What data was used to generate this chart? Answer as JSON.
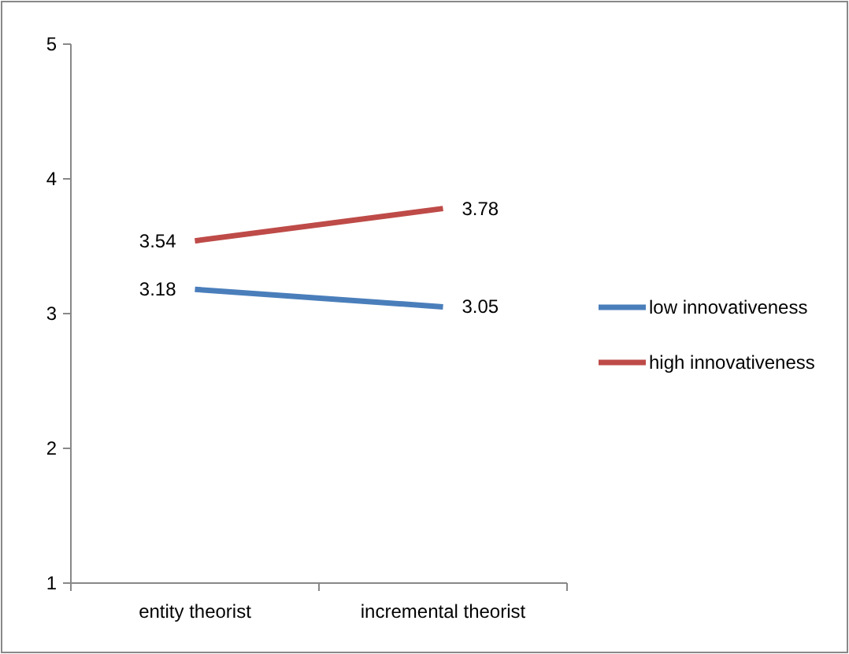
{
  "chart_data": {
    "type": "line",
    "categories": [
      "entity theorist",
      "incremental theorist"
    ],
    "series": [
      {
        "name": "low innovativeness",
        "color": "#4a7ebb",
        "values": [
          3.18,
          3.05
        ]
      },
      {
        "name": "high innovativeness",
        "color": "#be4b48",
        "values": [
          3.54,
          3.78
        ]
      }
    ],
    "ylim": [
      1,
      5
    ],
    "yticks": [
      1,
      2,
      3,
      4,
      5
    ],
    "data_labels": true,
    "legend": "right",
    "grid": false,
    "marker": "none"
  }
}
